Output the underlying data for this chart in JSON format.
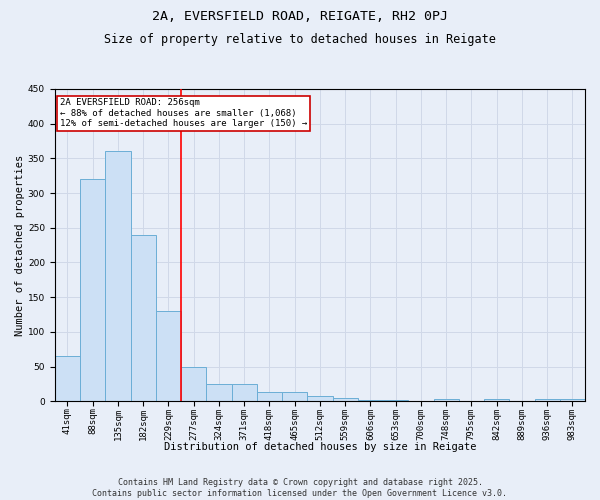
{
  "title_line1": "2A, EVERSFIELD ROAD, REIGATE, RH2 0PJ",
  "title_line2": "Size of property relative to detached houses in Reigate",
  "xlabel": "Distribution of detached houses by size in Reigate",
  "ylabel": "Number of detached properties",
  "categories": [
    "41sqm",
    "88sqm",
    "135sqm",
    "182sqm",
    "229sqm",
    "277sqm",
    "324sqm",
    "371sqm",
    "418sqm",
    "465sqm",
    "512sqm",
    "559sqm",
    "606sqm",
    "653sqm",
    "700sqm",
    "748sqm",
    "795sqm",
    "842sqm",
    "889sqm",
    "936sqm",
    "983sqm"
  ],
  "values": [
    65,
    320,
    360,
    240,
    130,
    50,
    25,
    25,
    13,
    13,
    8,
    5,
    2,
    2,
    0,
    3,
    0,
    3,
    0,
    3,
    3
  ],
  "bar_color": "#cce0f5",
  "bar_edge_color": "#6baed6",
  "red_line_x": 4.5,
  "annotation_text": "2A EVERSFIELD ROAD: 256sqm\n← 88% of detached houses are smaller (1,068)\n12% of semi-detached houses are larger (150) →",
  "annotation_box_color": "#ffffff",
  "annotation_box_edge_color": "#cc0000",
  "ylim": [
    0,
    450
  ],
  "yticks": [
    0,
    50,
    100,
    150,
    200,
    250,
    300,
    350,
    400,
    450
  ],
  "grid_color": "#d0d8e8",
  "background_color": "#e8eef8",
  "plot_bg_color": "#e8eef8",
  "footnote": "Contains HM Land Registry data © Crown copyright and database right 2025.\nContains public sector information licensed under the Open Government Licence v3.0.",
  "title_fontsize": 9.5,
  "subtitle_fontsize": 8.5,
  "axis_label_fontsize": 7.5,
  "tick_fontsize": 6.5,
  "annotation_fontsize": 6.5,
  "footnote_fontsize": 6.0
}
